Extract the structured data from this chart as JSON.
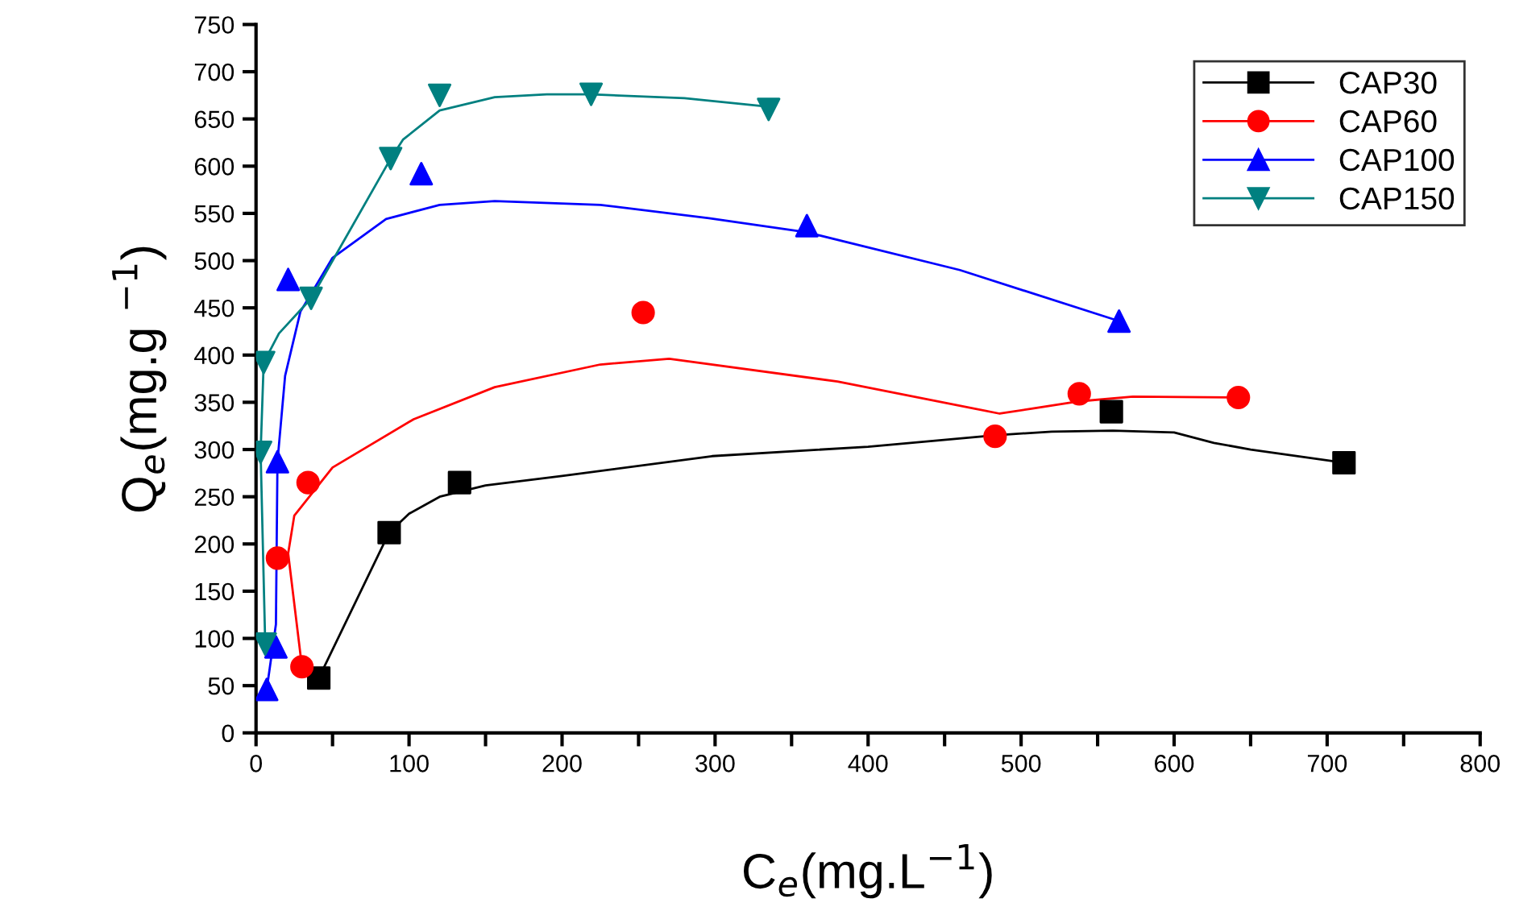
{
  "chart_data": {
    "type": "scatter",
    "xlabel": "C$_{e}$(mg.L$^{−1}$)",
    "ylabel": "Q$_{e}$(mg.g $^{−1}$)",
    "xlim": [
      0,
      800
    ],
    "ylim": [
      0,
      750
    ],
    "xticks": [
      0,
      {
        "value": 50,
        "label": null
      },
      100,
      {
        "value": 150,
        "label": null
      },
      200,
      {
        "value": 250,
        "label": null
      },
      300,
      {
        "value": 350,
        "label": null
      },
      400,
      {
        "value": 450,
        "label": null
      },
      500,
      {
        "value": 550,
        "label": null
      },
      600,
      {
        "value": 650,
        "label": null
      },
      700,
      {
        "value": 750,
        "label": null
      },
      800
    ],
    "yticks": [
      0,
      50,
      100,
      150,
      200,
      250,
      300,
      350,
      400,
      450,
      500,
      550,
      600,
      650,
      700,
      750
    ],
    "grid": false,
    "legend": "top right",
    "series": [
      {
        "name": "CAP30",
        "marker": "square",
        "color": "#000000",
        "x": [
          41,
          87,
          133,
          559,
          711
        ],
        "values": [
          58,
          212,
          265,
          340,
          286
        ]
      },
      {
        "name": "CAP60",
        "marker": "circle",
        "color": "#ff0000",
        "x": [
          14,
          30,
          34,
          253,
          483,
          538,
          642
        ],
        "values": [
          185,
          70,
          265,
          445,
          314,
          359,
          355
        ]
      },
      {
        "name": "CAP100",
        "marker": "triangle",
        "color": "#0000ff",
        "x": [
          7,
          13,
          14,
          21,
          108,
          360,
          564
        ],
        "values": [
          46,
          91,
          287,
          480,
          592,
          537,
          436
        ]
      },
      {
        "name": "CAP150",
        "marker": "triangle_down",
        "color": "#008080",
        "x": [
          3,
          5,
          6,
          36,
          88,
          120,
          219,
          335
        ],
        "values": [
          297,
          392,
          94,
          460,
          608,
          675,
          676,
          660
        ]
      },
      {
        "type": "line",
        "color": "#000000",
        "x": [
          41,
          87,
          100,
          120,
          150,
          200,
          298,
          400,
          483,
          520,
          560,
          600,
          626,
          650,
          711
        ],
        "values": [
          58,
          212,
          232,
          250,
          262,
          272,
          293,
          303,
          315,
          319,
          320,
          318,
          307,
          300,
          286
        ]
      },
      {
        "type": "line",
        "color": "#ff0000",
        "x": [
          30,
          21,
          25,
          50,
          103,
          156,
          225,
          270,
          380,
          486,
          538,
          573,
          642
        ],
        "values": [
          70,
          190,
          230,
          281,
          332,
          366,
          390,
          396,
          372,
          338,
          351,
          356,
          355
        ]
      },
      {
        "type": "line",
        "color": "#0000ff",
        "x": [
          7,
          13,
          14,
          19,
          29,
          50,
          85,
          120,
          156,
          225,
          296,
          360,
          460,
          564
        ],
        "values": [
          46,
          115,
          287,
          378,
          446,
          503,
          544,
          559,
          563,
          559,
          545,
          530,
          490,
          436
        ]
      },
      {
        "type": "line",
        "color": "#008080",
        "x": [
          6,
          3,
          5,
          15,
          36,
          88,
          96,
          120,
          156,
          190,
          219,
          280,
          335
        ],
        "values": [
          94,
          297,
          392,
          423,
          460,
          608,
          628,
          659,
          673,
          676,
          676,
          672,
          663
        ]
      }
    ]
  }
}
